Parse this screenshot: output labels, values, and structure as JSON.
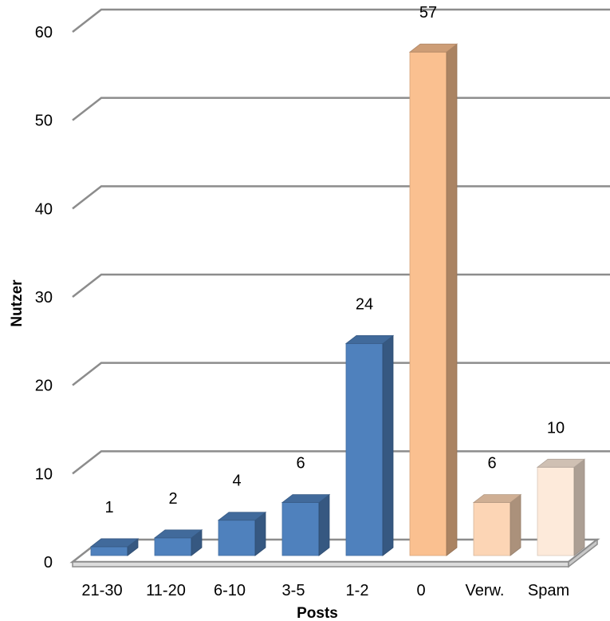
{
  "chart_data": {
    "type": "bar",
    "style": "3d-column",
    "categories": [
      "21-30",
      "11-20",
      "6-10",
      "3-5",
      "1-2",
      "0",
      "Verw.",
      "Spam"
    ],
    "values": [
      1,
      2,
      4,
      6,
      24,
      57,
      6,
      10
    ],
    "bar_colors": [
      "#4f81bd",
      "#4f81bd",
      "#4f81bd",
      "#4f81bd",
      "#4f81bd",
      "#fac090",
      "#fcd5b5",
      "#fdeada"
    ],
    "xlabel": "Posts",
    "ylabel": "Nutzer",
    "ylim": [
      0,
      60
    ],
    "yticks": [
      0,
      10,
      20,
      30,
      40,
      50,
      60
    ],
    "grid": true,
    "legend": "none",
    "data_labels": true
  }
}
